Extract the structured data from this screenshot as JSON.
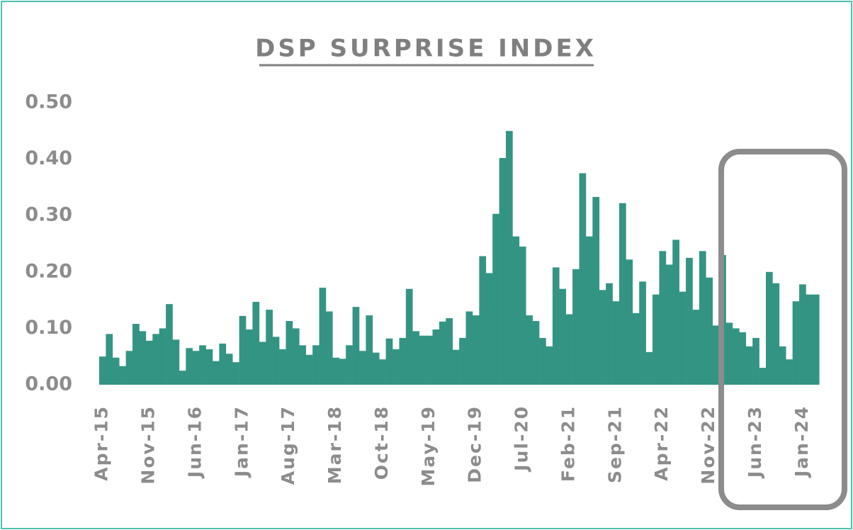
{
  "chart_data": {
    "type": "bar",
    "title": "DSP SURPRISE INDEX",
    "categories": [
      "Apr-15",
      null,
      null,
      null,
      null,
      null,
      null,
      "Nov-15",
      null,
      null,
      null,
      null,
      null,
      null,
      "Jun-16",
      null,
      null,
      null,
      null,
      null,
      null,
      "Jan-17",
      null,
      null,
      null,
      null,
      null,
      null,
      "Aug-17",
      null,
      null,
      null,
      null,
      null,
      null,
      "Mar-18",
      null,
      null,
      null,
      null,
      null,
      null,
      "Oct-18",
      null,
      null,
      null,
      null,
      null,
      null,
      "May-19",
      null,
      null,
      null,
      null,
      null,
      null,
      "Dec-19",
      null,
      null,
      null,
      null,
      null,
      null,
      "Jul-20",
      null,
      null,
      null,
      null,
      null,
      null,
      "Feb-21",
      null,
      null,
      null,
      null,
      null,
      null,
      "Sep-21",
      null,
      null,
      null,
      null,
      null,
      null,
      "Apr-22",
      null,
      null,
      null,
      null,
      null,
      null,
      "Nov-22",
      null,
      null,
      null,
      null,
      null,
      null,
      "Jun-23",
      null,
      null,
      null,
      null,
      null,
      null,
      "Jan-24",
      null,
      null
    ],
    "values": [
      0.05,
      0.09,
      0.048,
      0.033,
      0.06,
      0.108,
      0.095,
      0.078,
      0.09,
      0.1,
      0.143,
      0.08,
      0.025,
      0.065,
      0.06,
      0.07,
      0.063,
      0.042,
      0.073,
      0.055,
      0.04,
      0.122,
      0.098,
      0.147,
      0.076,
      0.133,
      0.085,
      0.063,
      0.113,
      0.1,
      0.07,
      0.053,
      0.07,
      0.172,
      0.13,
      0.048,
      0.046,
      0.07,
      0.138,
      0.06,
      0.123,
      0.057,
      0.045,
      0.082,
      0.063,
      0.083,
      0.17,
      0.095,
      0.087,
      0.087,
      0.098,
      0.112,
      0.118,
      0.062,
      0.083,
      0.13,
      0.123,
      0.228,
      0.198,
      0.303,
      0.402,
      0.45,
      0.263,
      0.245,
      0.123,
      0.113,
      0.083,
      0.068,
      0.208,
      0.17,
      0.125,
      0.205,
      0.375,
      0.263,
      0.333,
      0.168,
      0.18,
      0.148,
      0.322,
      0.222,
      0.127,
      0.183,
      0.058,
      0.16,
      0.237,
      0.213,
      0.257,
      0.165,
      0.225,
      0.133,
      0.237,
      0.19,
      0.105,
      0.23,
      0.11,
      0.1,
      0.093,
      0.068,
      0.083,
      0.03,
      0.2,
      0.18,
      0.068,
      0.045,
      0.148,
      0.178,
      0.16,
      0.16
    ],
    "color": "#349483",
    "ylim": [
      0,
      0.5
    ],
    "yticks": [
      {
        "value": 0,
        "label": "0.00"
      },
      {
        "value": 0.1,
        "label": "0.10"
      },
      {
        "value": 0.2,
        "label": "0.20"
      },
      {
        "value": 0.3,
        "label": "0.30"
      },
      {
        "value": 0.4,
        "label": "0.40"
      },
      {
        "value": 0.5,
        "label": "0.50"
      }
    ]
  }
}
